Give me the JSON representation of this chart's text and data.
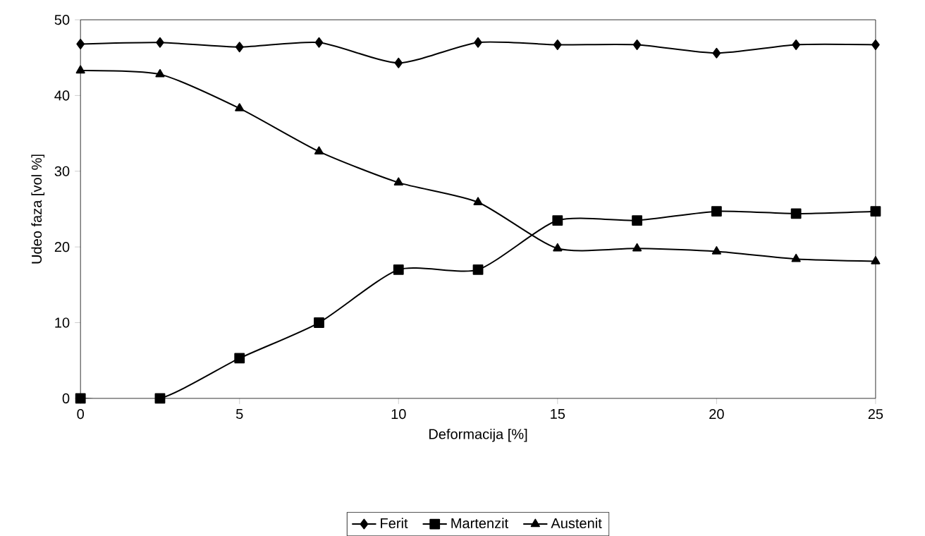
{
  "chart_data": {
    "type": "line",
    "xlabel": "Deformacija [%]",
    "ylabel": "Udeo faza [vol %]",
    "x": [
      0,
      2.5,
      5,
      7.5,
      10,
      12.5,
      15,
      17.5,
      20,
      22.5,
      25
    ],
    "series": [
      {
        "name": "Ferit",
        "color": "#000000",
        "marker": "diamond",
        "values": [
          46.8,
          47,
          46.4,
          47,
          44.3,
          47,
          46.7,
          46.7,
          45.6,
          46.7,
          46.7
        ]
      },
      {
        "name": "Martenzit",
        "color": "#000000",
        "marker": "square",
        "values": [
          0,
          0,
          5.3,
          10,
          17,
          17,
          23.5,
          23.5,
          24.7,
          24.4,
          24.7
        ]
      },
      {
        "name": "Austenit",
        "color": "#000000",
        "marker": "triangle",
        "values": [
          43.3,
          42.8,
          38.3,
          32.6,
          28.5,
          25.9,
          19.8,
          19.8,
          19.4,
          18.4,
          18.1
        ]
      }
    ],
    "xlim": [
      0,
      25
    ],
    "xticks": [
      0,
      5,
      10,
      15,
      20,
      25
    ],
    "ylim": [
      0,
      50
    ],
    "yticks": [
      0,
      10,
      20,
      30,
      40,
      50
    ],
    "grid": false,
    "legend": "bottom",
    "line_style": "solid"
  }
}
